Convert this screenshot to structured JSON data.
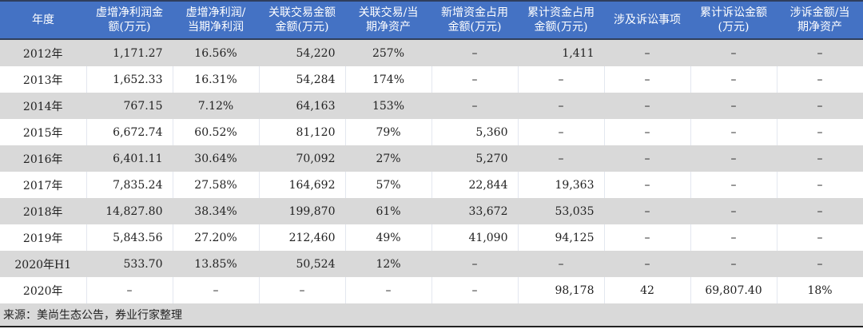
{
  "table": {
    "headers": [
      "年度",
      "虚增净利润金额(万元)",
      "虚增净利润/当期净利润",
      "关联交易金额金额(万元)",
      "关联交易/当期净资产",
      "新增资金占用金额(万元)",
      "累计资金占用金额(万元)",
      "涉及诉讼事项",
      "累计诉讼金额(万元)",
      "涉诉金额/当期净资产"
    ],
    "header_lines": [
      [
        "年度"
      ],
      [
        "虚增净利润金",
        "额(万元)"
      ],
      [
        "虚增净利润/",
        "当期净利润"
      ],
      [
        "关联交易金额",
        "金额(万元)"
      ],
      [
        "关联交易/当",
        "期净资产"
      ],
      [
        "新增资金占用",
        "金额(万元)"
      ],
      [
        "累计资金占用",
        "金额(万元)"
      ],
      [
        "涉及诉讼事项"
      ],
      [
        "累计诉讼金额",
        "(万元)"
      ],
      [
        "涉诉金额/当",
        "期净资产"
      ]
    ],
    "rows": [
      [
        "2012年",
        "1,171.27",
        "16.56%",
        "54,220",
        "257%",
        "–",
        "1,411",
        "–",
        "–",
        "–"
      ],
      [
        "2013年",
        "1,652.33",
        "16.31%",
        "54,284",
        "174%",
        "–",
        "–",
        "–",
        "–",
        "–"
      ],
      [
        "2014年",
        "767.15",
        "7.12%",
        "64,163",
        "153%",
        "–",
        "–",
        "–",
        "–",
        "–"
      ],
      [
        "2015年",
        "6,672.74",
        "60.52%",
        "81,120",
        "79%",
        "5,360",
        "–",
        "–",
        "–",
        "–"
      ],
      [
        "2016年",
        "6,401.11",
        "30.64%",
        "70,092",
        "27%",
        "5,270",
        "–",
        "–",
        "–",
        "–"
      ],
      [
        "2017年",
        "7,835.24",
        "27.58%",
        "164,692",
        "57%",
        "22,844",
        "19,363",
        "–",
        "–",
        "–"
      ],
      [
        "2018年",
        "14,827.80",
        "38.34%",
        "199,870",
        "61%",
        "33,672",
        "53,035",
        "–",
        "–",
        "–"
      ],
      [
        "2019年",
        "5,843.56",
        "27.20%",
        "212,460",
        "49%",
        "41,090",
        "94,125",
        "–",
        "–",
        "–"
      ],
      [
        "2020年H1",
        "533.70",
        "13.85%",
        "50,524",
        "12%",
        "–",
        "–",
        "–",
        "–",
        "–"
      ],
      [
        "2020年",
        "–",
        "–",
        "–",
        "–",
        "–",
        "98,178",
        "42",
        "69,807.40",
        "18%"
      ]
    ],
    "source": "来源：美尚生态公告，券业行家整理"
  },
  "colors": {
    "header_bg": "#4472C4",
    "stripe": "#D9D9D9"
  }
}
